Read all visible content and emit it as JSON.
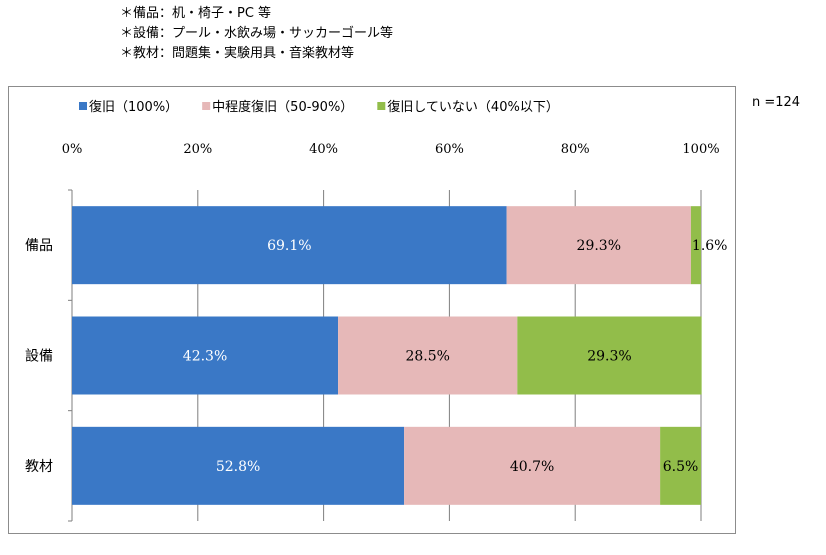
{
  "notes": [
    "＊備品：机・椅子・PC 等",
    "＊設備：プール・水飲み場・サッカーゴール等",
    "＊教材：問題集・実験用具・音楽教材等"
  ],
  "sample_size": "n =124",
  "chart_data": {
    "type": "bar",
    "orientation": "horizontal",
    "stacked": true,
    "categories": [
      "備品",
      "設備",
      "教材"
    ],
    "series": [
      {
        "name": "復旧（100%）",
        "color": "#3a78c6",
        "values": [
          69.1,
          42.3,
          52.8
        ],
        "labels": [
          "69.1%",
          "42.3%",
          "52.8%"
        ]
      },
      {
        "name": "中程度復旧（50-90%）",
        "color": "#e6b8b8",
        "values": [
          29.3,
          28.5,
          40.7
        ],
        "labels": [
          "29.3%",
          "28.5%",
          "40.7%"
        ]
      },
      {
        "name": "復旧していない（40%以下）",
        "color": "#92bd4a",
        "values": [
          1.6,
          29.3,
          6.5
        ],
        "labels": [
          "1.6%",
          "29.3%",
          "6.5%"
        ]
      }
    ],
    "xlim": [
      0,
      100
    ],
    "xticks": [
      0,
      20,
      40,
      60,
      80,
      100
    ],
    "xtick_labels": [
      "0%",
      "20%",
      "40%",
      "60%",
      "80%",
      "100%"
    ],
    "grid": true,
    "legend_position": "top",
    "title": "",
    "xlabel": "",
    "ylabel": ""
  }
}
